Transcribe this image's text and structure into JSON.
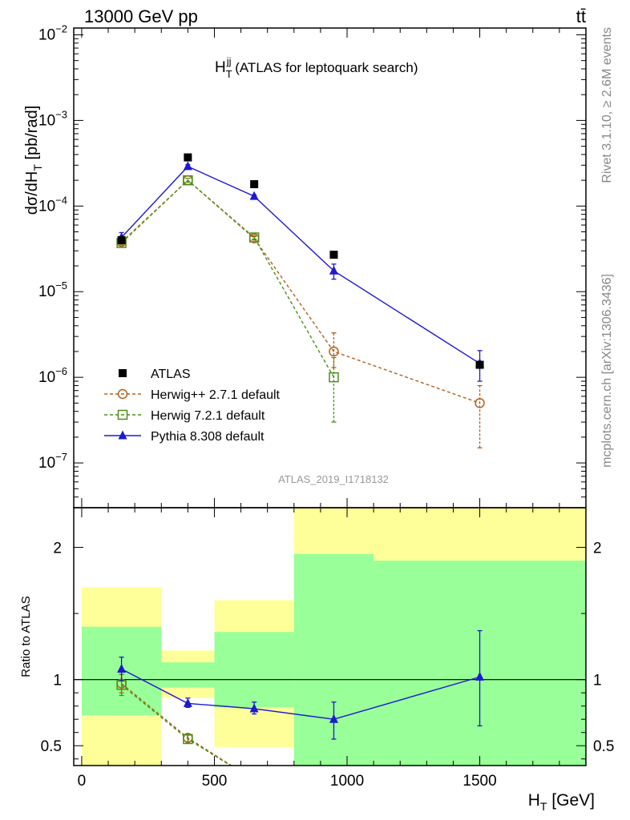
{
  "header": {
    "left": "13000 GeV pp",
    "right": "tt̄"
  },
  "side_labels": {
    "rivet": "Rivet 3.1.10, ≥ 2.6M events",
    "mcplots": "mcplots.cern.ch [arXiv:1306.3436]"
  },
  "chart_data": {
    "type": "scatter",
    "title_main": "H",
    "title_sup": "jj",
    "title_sub": "T",
    "title_rest": " (ATLAS for leptoquark search)",
    "analysis_id": "ATLAS_2019_I1718132",
    "ylabel_main": "dσ/dH",
    "ylabel_sub": "T",
    "ylabel_rest": " [pb/rad]",
    "xlabel_main": "H",
    "xlabel_sub": "T",
    "xlabel_rest": " [GeV]",
    "ratio_ylabel": "Ratio to ATLAS",
    "x_range": [
      -30,
      1900
    ],
    "y_log": true,
    "y_range": [
      3e-08,
      0.012
    ],
    "y_ticks": [
      {
        "v": 1e-07,
        "m": "10",
        "e": "−7"
      },
      {
        "v": 1e-06,
        "m": "10",
        "e": "−6"
      },
      {
        "v": 1e-05,
        "m": "10",
        "e": "−5"
      },
      {
        "v": 0.0001,
        "m": "10",
        "e": "−4"
      },
      {
        "v": 0.001,
        "m": "10",
        "e": "−3"
      },
      {
        "v": 0.01,
        "m": "10",
        "e": "−2"
      }
    ],
    "x_ticks": [
      0,
      500,
      1000,
      1500
    ],
    "x_tick_labels": [
      "0",
      "500",
      "1000",
      "1500"
    ],
    "ratio_range": [
      0.35,
      2.3
    ],
    "ratio_ticks": [
      0.5,
      1,
      2
    ],
    "ratio_tick_labels": [
      "0.5",
      "1",
      "2"
    ],
    "bin_edges": [
      0,
      300,
      500,
      800,
      1900
    ],
    "data": {
      "name": "ATLAS",
      "x": [
        150,
        400,
        650,
        950,
        1500
      ],
      "y": [
        4e-05,
        0.00037,
        0.00018,
        2.7e-05,
        1.4e-06
      ]
    },
    "series": [
      {
        "name": "Herwig++ 2.7.1 default",
        "color": "#b5601b",
        "marker": "circle",
        "dashed": true,
        "x": [
          150,
          400,
          650,
          950,
          1500
        ],
        "y": [
          3.8e-05,
          0.0002,
          4.2e-05,
          2e-06,
          5e-07
        ],
        "err_lo": [
          3.6e-05,
          0.00019,
          4e-05,
          1.3e-06,
          1.5e-07
        ],
        "err_hi": [
          4e-05,
          0.00021,
          4.4e-05,
          3.3e-06,
          8e-07
        ],
        "ratio": [
          0.97,
          0.56,
          0.24
        ],
        "ratio_lo": [
          0.9,
          0.53
        ],
        "ratio_hi": [
          1.04,
          0.59
        ]
      },
      {
        "name": "Herwig 7.2.1 default",
        "color": "#4b8f1a",
        "marker": "square",
        "dashed": true,
        "x": [
          150,
          400,
          650,
          950
        ],
        "y": [
          3.7e-05,
          0.0002,
          4.3e-05,
          1e-06
        ],
        "err_lo": [
          3.5e-05,
          0.00019,
          4.1e-05,
          3e-07
        ],
        "err_hi": [
          3.9e-05,
          0.00021,
          4.5e-05,
          1.7e-06
        ],
        "ratio": [
          0.96,
          0.55,
          0.24
        ],
        "ratio_lo": [
          0.88,
          0.52
        ],
        "ratio_hi": [
          1.04,
          0.58
        ]
      },
      {
        "name": "Pythia 8.308 default",
        "color": "#1c19cf",
        "marker": "triangle",
        "dashed": false,
        "x": [
          150,
          400,
          650,
          950,
          1500
        ],
        "y": [
          4.3e-05,
          0.00029,
          0.00013,
          1.75e-05,
          1.45e-06
        ],
        "err_lo": [
          3.9e-05,
          0.000275,
          0.000125,
          1.4e-05,
          9e-07
        ],
        "err_hi": [
          4.9e-05,
          0.000305,
          0.000135,
          2.1e-05,
          2.05e-06
        ],
        "ratio": [
          1.08,
          0.82,
          0.78,
          0.7,
          1.02
        ],
        "ratio_lo": [
          0.99,
          0.79,
          0.74,
          0.55,
          0.65
        ],
        "ratio_hi": [
          1.17,
          0.86,
          0.83,
          0.83,
          1.37
        ]
      }
    ],
    "bands": {
      "yellow_color": "#ffff99",
      "green_color": "#99ff99",
      "yellow": [
        {
          "x0": 0,
          "x1": 300,
          "lo": 0.35,
          "hi": 1.7
        },
        {
          "x0": 300,
          "x1": 500,
          "lo": 0.86,
          "hi": 1.22
        },
        {
          "x0": 500,
          "x1": 800,
          "lo": 0.49,
          "hi": 1.6
        },
        {
          "x0": 800,
          "x1": 1900,
          "lo": 0.35,
          "hi": 2.3
        }
      ],
      "green": [
        {
          "x0": 0,
          "x1": 300,
          "lo": 0.73,
          "hi": 1.4
        },
        {
          "x0": 300,
          "x1": 500,
          "lo": 0.94,
          "hi": 1.13
        },
        {
          "x0": 500,
          "x1": 800,
          "lo": 0.79,
          "hi": 1.36
        },
        {
          "x0": 800,
          "x1": 1100,
          "lo": 0.35,
          "hi": 1.95
        },
        {
          "x0": 1100,
          "x1": 1900,
          "lo": 0.35,
          "hi": 1.9
        }
      ]
    }
  }
}
